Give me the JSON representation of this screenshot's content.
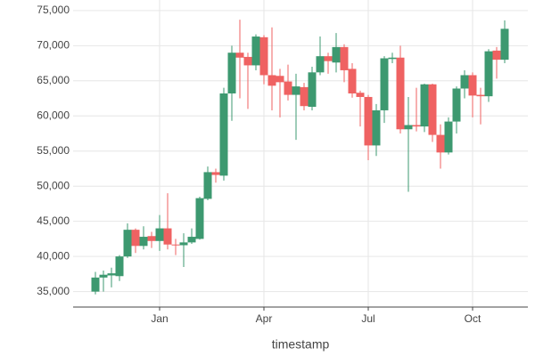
{
  "chart_data": {
    "type": "candlestick",
    "x_label": "timestamp",
    "categories": [
      null,
      null,
      null,
      null,
      null,
      null,
      null,
      null,
      "Jan",
      null,
      null,
      null,
      null,
      null,
      null,
      null,
      null,
      null,
      null,
      null,
      null,
      "Apr",
      null,
      null,
      null,
      null,
      null,
      null,
      null,
      null,
      null,
      null,
      null,
      null,
      "Jul",
      null,
      null,
      null,
      null,
      null,
      null,
      null,
      null,
      null,
      null,
      null,
      null,
      "Oct",
      null,
      null,
      null,
      null
    ],
    "open": [
      35000,
      37000,
      37300,
      37200,
      40000,
      43800,
      41500,
      42900,
      42200,
      44000,
      41700,
      41600,
      42000,
      42500,
      48200,
      52000,
      51500,
      63200,
      69000,
      68400,
      67200,
      71200,
      65800,
      65700,
      64900,
      63000,
      64100,
      61300,
      66200,
      68500,
      67600,
      69800,
      66700,
      63300,
      62700,
      55800,
      60800,
      68100,
      68300,
      58100,
      58700,
      58500,
      64500,
      57300,
      54800,
      59200,
      63900,
      65800,
      63000,
      62800,
      69300,
      68000
    ],
    "high": [
      37800,
      38000,
      38400,
      40200,
      44700,
      44000,
      44300,
      43500,
      45900,
      49000,
      42500,
      43300,
      44000,
      48500,
      52800,
      52500,
      64000,
      70000,
      73700,
      69000,
      71600,
      71500,
      72600,
      66700,
      67300,
      66000,
      64700,
      67000,
      71300,
      69000,
      71800,
      70200,
      67500,
      63600,
      63000,
      61700,
      68500,
      69000,
      70000,
      62700,
      64000,
      64600,
      64600,
      58800,
      59800,
      64200,
      66500,
      66200,
      64000,
      69500,
      69800,
      73600
    ],
    "low": [
      34600,
      35000,
      35600,
      36500,
      39800,
      40500,
      41000,
      41200,
      40800,
      41000,
      40200,
      38500,
      41800,
      42400,
      48000,
      50500,
      50800,
      59300,
      62500,
      61000,
      66500,
      64500,
      60800,
      59800,
      62200,
      56600,
      60800,
      60800,
      65800,
      66000,
      66200,
      64800,
      62600,
      58500,
      53700,
      54300,
      59000,
      67500,
      57500,
      49200,
      57800,
      57700,
      56300,
      52500,
      54500,
      57500,
      62500,
      59800,
      58800,
      62000,
      65300,
      67500
    ],
    "close": [
      37000,
      37400,
      37600,
      40000,
      43800,
      41500,
      42800,
      42200,
      44000,
      41700,
      41600,
      42000,
      42800,
      48300,
      52000,
      51600,
      63200,
      69000,
      68300,
      67200,
      71300,
      65800,
      64300,
      64800,
      63000,
      64200,
      61400,
      66200,
      68500,
      67800,
      69800,
      66500,
      63200,
      62700,
      55800,
      60800,
      68200,
      68300,
      58100,
      58700,
      58500,
      64500,
      57300,
      54800,
      59200,
      63900,
      65800,
      62900,
      62800,
      69200,
      68000,
      72400
    ],
    "increasing_color": "#3d9970",
    "decreasing_color": "#ef6262",
    "ylim": [
      32800,
      76500
    ],
    "yticks": [
      {
        "value": 35000,
        "label": "35,000"
      },
      {
        "value": 40000,
        "label": "40,000"
      },
      {
        "value": 45000,
        "label": "45,000"
      },
      {
        "value": 50000,
        "label": "50,000"
      },
      {
        "value": 55000,
        "label": "55,000"
      },
      {
        "value": 60000,
        "label": "60,000"
      },
      {
        "value": 65000,
        "label": "65,000"
      },
      {
        "value": 70000,
        "label": "70,000"
      },
      {
        "value": 75000,
        "label": "75,000"
      }
    ],
    "grid": true
  }
}
